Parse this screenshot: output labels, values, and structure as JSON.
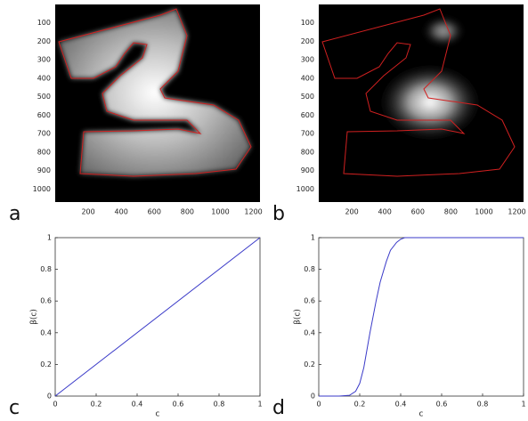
{
  "chart_data": [
    {
      "type": "image",
      "panel_label": "a",
      "xlim": [
        0,
        1240
      ],
      "ylim": [
        0,
        1070
      ],
      "y_inverted": true,
      "xticks": [
        200,
        400,
        600,
        800,
        1000,
        1200
      ],
      "yticks": [
        100,
        200,
        300,
        400,
        500,
        600,
        700,
        800,
        900,
        1000
      ]
    },
    {
      "type": "image",
      "panel_label": "b",
      "xlim": [
        0,
        1240
      ],
      "ylim": [
        0,
        1070
      ],
      "y_inverted": true,
      "xticks": [
        200,
        400,
        600,
        800,
        1000,
        1200
      ],
      "yticks": [
        100,
        200,
        300,
        400,
        500,
        600,
        700,
        800,
        900,
        1000
      ]
    },
    {
      "type": "line",
      "panel_label": "c",
      "xlabel": "c",
      "ylabel": "β(c)",
      "color": "#3a3ac8",
      "x": [
        0,
        1
      ],
      "values": [
        0,
        1
      ],
      "xlim": [
        0,
        1
      ],
      "ylim": [
        0,
        1
      ],
      "xticks": [
        0,
        0.2,
        0.4,
        0.6,
        0.8,
        1
      ],
      "yticks": [
        0,
        0.2,
        0.4,
        0.6,
        0.8,
        1
      ]
    },
    {
      "type": "line",
      "panel_label": "d",
      "xlabel": "c",
      "ylabel": "β(c)",
      "color": "#3a3ac8",
      "x": [
        0,
        0.1,
        0.15,
        0.18,
        0.2,
        0.22,
        0.25,
        0.28,
        0.3,
        0.33,
        0.35,
        0.38,
        0.4,
        0.42,
        0.45,
        0.5,
        0.6,
        0.8,
        1
      ],
      "values": [
        0,
        0,
        0.005,
        0.03,
        0.08,
        0.18,
        0.4,
        0.6,
        0.72,
        0.85,
        0.92,
        0.97,
        0.99,
        1,
        1,
        1,
        1,
        1,
        1
      ],
      "xlim": [
        0,
        1
      ],
      "ylim": [
        0,
        1
      ],
      "xticks": [
        0,
        0.2,
        0.4,
        0.6,
        0.8,
        1
      ],
      "yticks": [
        0,
        0.2,
        0.4,
        0.6,
        0.8,
        1
      ]
    }
  ]
}
